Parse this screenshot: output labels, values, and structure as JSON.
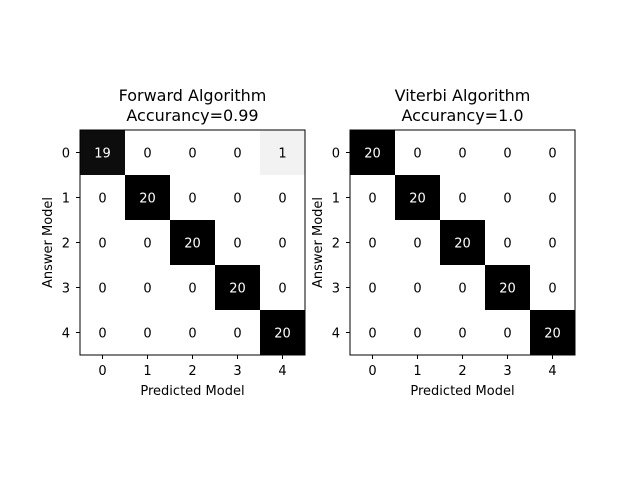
{
  "chart_data": [
    {
      "type": "heatmap",
      "title_lines": [
        "Forward Algorithm",
        "Accurancy=0.99"
      ],
      "xlabel": "Predicted Model",
      "ylabel": "Answer Model",
      "x_ticks": [
        "0",
        "1",
        "2",
        "3",
        "4"
      ],
      "y_ticks": [
        "0",
        "1",
        "2",
        "3",
        "4"
      ],
      "matrix": [
        [
          19,
          0,
          0,
          0,
          1
        ],
        [
          0,
          20,
          0,
          0,
          0
        ],
        [
          0,
          0,
          20,
          0,
          0
        ],
        [
          0,
          0,
          0,
          20,
          0
        ],
        [
          0,
          0,
          0,
          0,
          20
        ]
      ],
      "colormap": "greys",
      "vmin": 0,
      "vmax": 20
    },
    {
      "type": "heatmap",
      "title_lines": [
        "Viterbi Algorithm",
        "Accurancy=1.0"
      ],
      "xlabel": "Predicted Model",
      "ylabel": "Answer Model",
      "x_ticks": [
        "0",
        "1",
        "2",
        "3",
        "4"
      ],
      "y_ticks": [
        "0",
        "1",
        "2",
        "3",
        "4"
      ],
      "matrix": [
        [
          20,
          0,
          0,
          0,
          0
        ],
        [
          0,
          20,
          0,
          0,
          0
        ],
        [
          0,
          0,
          20,
          0,
          0
        ],
        [
          0,
          0,
          0,
          20,
          0
        ],
        [
          0,
          0,
          0,
          0,
          20
        ]
      ],
      "colormap": "greys",
      "vmin": 0,
      "vmax": 20
    }
  ]
}
